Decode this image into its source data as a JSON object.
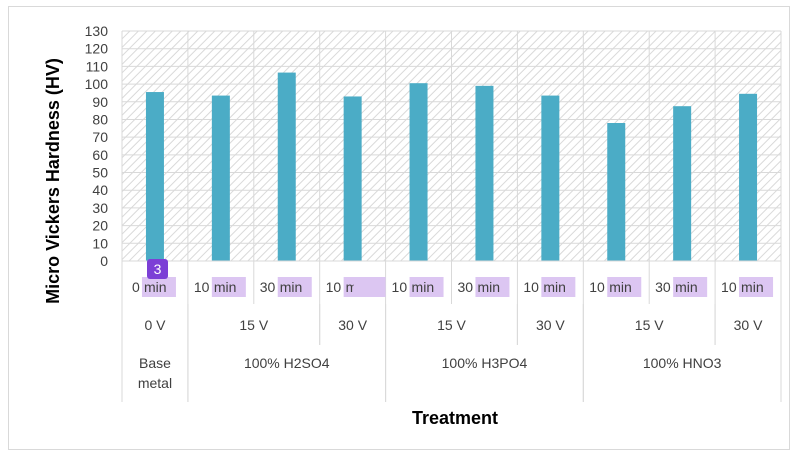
{
  "chart_data": {
    "type": "bar",
    "title": "",
    "xlabel": "Treatment",
    "ylabel": "Micro Vickers  Hardness (HV)",
    "ylim": [
      0,
      130
    ],
    "yticks": [
      0,
      10,
      20,
      30,
      40,
      50,
      60,
      70,
      80,
      90,
      100,
      110,
      120,
      130
    ],
    "grid": true,
    "bar_color": "#4bacc6",
    "categories": [
      {
        "time": "0",
        "voltage": "0 V",
        "group": "Base metal"
      },
      {
        "time": "10",
        "voltage": "15 V",
        "group": "100% H2SO4"
      },
      {
        "time": "30",
        "voltage": "15 V",
        "group": "100% H2SO4"
      },
      {
        "time": "10",
        "voltage": "30 V",
        "group": "100% H2SO4"
      },
      {
        "time": "10",
        "voltage": "15 V",
        "group": "100% H3PO4"
      },
      {
        "time": "30",
        "voltage": "15 V",
        "group": "100% H3PO4"
      },
      {
        "time": "10",
        "voltage": "30 V",
        "group": "100% H3PO4"
      },
      {
        "time": "10",
        "voltage": "15 V",
        "group": "100% HNO3"
      },
      {
        "time": "30",
        "voltage": "15 V",
        "group": "100% HNO3"
      },
      {
        "time": "10",
        "voltage": "30 V",
        "group": "100% HNO3"
      }
    ],
    "time_unit": "min",
    "values": [
      95.5,
      93.5,
      106.5,
      93,
      100.5,
      99,
      93.5,
      78,
      87.5,
      94.5
    ],
    "voltage_labels": [
      "0 V",
      "15 V",
      "30 V",
      "15 V",
      "30 V",
      "15 V",
      "30 V"
    ],
    "group_labels": [
      "Base\nmetal",
      "100% H2SO4",
      "100% H3PO4",
      "100% HNO3"
    ],
    "badge": "3"
  }
}
